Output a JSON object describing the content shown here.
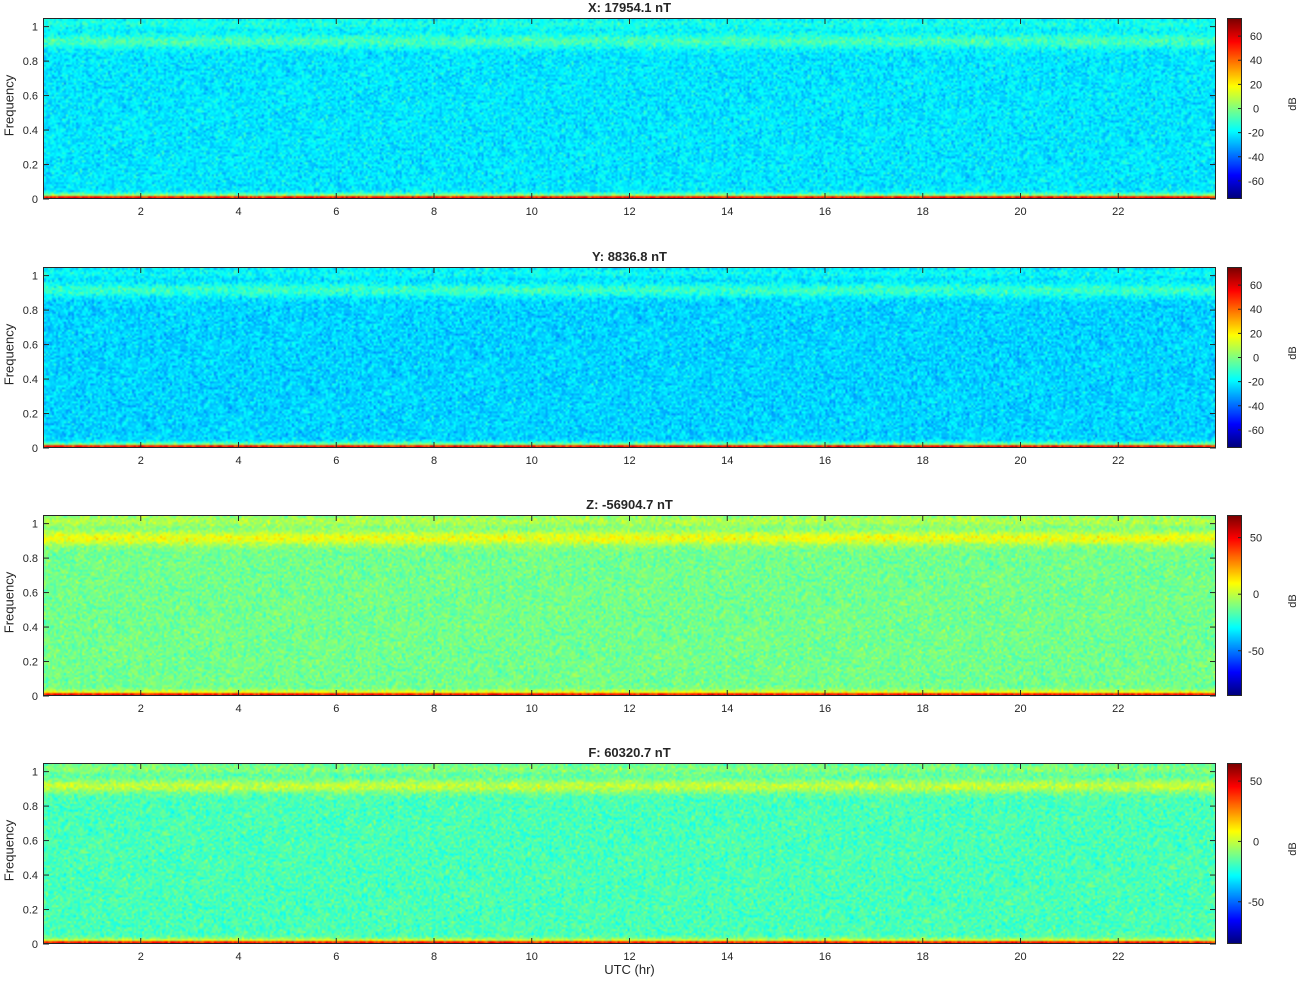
{
  "chart_data": [
    {
      "type": "heatmap",
      "title": "X: 17954.1 nT",
      "ylabel": "Frequency",
      "xlabel": "",
      "xlim": [
        0,
        24
      ],
      "ylim": [
        0,
        1.05
      ],
      "xticks": [
        2,
        4,
        6,
        8,
        10,
        12,
        14,
        16,
        18,
        20,
        22
      ],
      "yticks": [
        0,
        0.2,
        0.4,
        0.6,
        0.8,
        1
      ],
      "colorbar": {
        "label": "dB",
        "range": [
          -75,
          75
        ],
        "ticks": [
          -60,
          -40,
          -20,
          0,
          20,
          40,
          60
        ]
      },
      "colormap": "jet",
      "profile_db": {
        "low_freq_band": 70,
        "background": -22,
        "upper_band_freq": 0.92,
        "upper_band": -8
      }
    },
    {
      "type": "heatmap",
      "title": "Y: 8836.8 nT",
      "ylabel": "Frequency",
      "xlabel": "",
      "xlim": [
        0,
        24
      ],
      "ylim": [
        0,
        1.05
      ],
      "xticks": [
        2,
        4,
        6,
        8,
        10,
        12,
        14,
        16,
        18,
        20,
        22
      ],
      "yticks": [
        0,
        0.2,
        0.4,
        0.6,
        0.8,
        1
      ],
      "colorbar": {
        "label": "dB",
        "range": [
          -75,
          75
        ],
        "ticks": [
          -60,
          -40,
          -20,
          0,
          20,
          40,
          60
        ]
      },
      "colormap": "jet",
      "profile_db": {
        "low_freq_band": 70,
        "background": -25,
        "upper_band_freq": 0.92,
        "upper_band": -10
      }
    },
    {
      "type": "heatmap",
      "title": "Z: -56904.7 nT",
      "ylabel": "Frequency",
      "xlabel": "",
      "xlim": [
        0,
        24
      ],
      "ylim": [
        0,
        1.05
      ],
      "xticks": [
        2,
        4,
        6,
        8,
        10,
        12,
        14,
        16,
        18,
        20,
        22
      ],
      "yticks": [
        0,
        0.2,
        0.4,
        0.6,
        0.8,
        1
      ],
      "colorbar": {
        "label": "dB",
        "range": [
          -90,
          70
        ],
        "ticks": [
          -50,
          0,
          50
        ]
      },
      "colormap": "jet",
      "profile_db": {
        "low_freq_band": 60,
        "background": -12,
        "upper_band_freq": 0.92,
        "upper_band": 8
      }
    },
    {
      "type": "heatmap",
      "title": "F: 60320.7 nT",
      "ylabel": "Frequency",
      "xlabel": "UTC (hr)",
      "xlim": [
        0,
        24
      ],
      "ylim": [
        0,
        1.05
      ],
      "xticks": [
        2,
        4,
        6,
        8,
        10,
        12,
        14,
        16,
        18,
        20,
        22
      ],
      "yticks": [
        0,
        0.2,
        0.4,
        0.6,
        0.8,
        1
      ],
      "colorbar": {
        "label": "dB",
        "range": [
          -85,
          65
        ],
        "ticks": [
          -50,
          0,
          50
        ]
      },
      "colormap": "jet",
      "profile_db": {
        "low_freq_band": 55,
        "background": -18,
        "upper_band_freq": 0.92,
        "upper_band": 0
      }
    }
  ]
}
